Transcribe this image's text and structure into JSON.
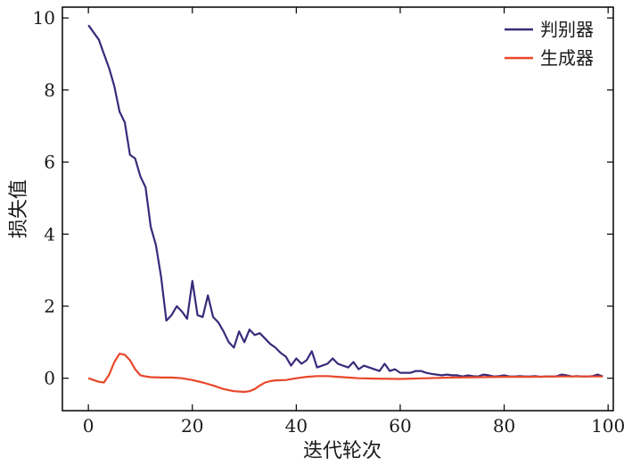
{
  "chart_data": {
    "type": "line",
    "xlabel": "迭代轮次",
    "ylabel": "损失值",
    "xlim": [
      -5,
      101
    ],
    "ylim": [
      -0.9,
      10.3
    ],
    "xticks": [
      0,
      20,
      40,
      60,
      80,
      100
    ],
    "yticks": [
      0,
      2,
      4,
      6,
      8,
      10
    ],
    "grid": false,
    "legend_position": "top-right",
    "series": [
      {
        "name": "判别器",
        "color": "#3b2a7a",
        "x": [
          0,
          1,
          2,
          3,
          4,
          5,
          6,
          7,
          8,
          9,
          10,
          11,
          12,
          13,
          14,
          15,
          16,
          17,
          18,
          19,
          20,
          21,
          22,
          23,
          24,
          25,
          26,
          27,
          28,
          29,
          30,
          31,
          32,
          33,
          34,
          35,
          36,
          37,
          38,
          39,
          40,
          41,
          42,
          43,
          44,
          45,
          46,
          47,
          48,
          49,
          50,
          51,
          52,
          53,
          54,
          55,
          56,
          57,
          58,
          59,
          60,
          61,
          62,
          63,
          64,
          65,
          66,
          67,
          68,
          69,
          70,
          71,
          72,
          73,
          74,
          75,
          76,
          77,
          78,
          79,
          80,
          81,
          82,
          83,
          84,
          85,
          86,
          87,
          88,
          89,
          90,
          91,
          92,
          93,
          94,
          95,
          96,
          97,
          98,
          99
        ],
        "y": [
          9.8,
          9.6,
          9.4,
          9.0,
          8.6,
          8.1,
          7.4,
          7.1,
          6.2,
          6.1,
          5.6,
          5.3,
          4.2,
          3.7,
          2.8,
          1.6,
          1.75,
          2.0,
          1.85,
          1.65,
          2.7,
          1.75,
          1.7,
          2.3,
          1.7,
          1.55,
          1.3,
          1.0,
          0.85,
          1.3,
          1.0,
          1.35,
          1.2,
          1.25,
          1.1,
          0.95,
          0.85,
          0.7,
          0.6,
          0.35,
          0.55,
          0.4,
          0.5,
          0.75,
          0.3,
          0.35,
          0.4,
          0.55,
          0.4,
          0.35,
          0.3,
          0.45,
          0.25,
          0.35,
          0.3,
          0.25,
          0.2,
          0.4,
          0.2,
          0.25,
          0.15,
          0.15,
          0.15,
          0.2,
          0.2,
          0.15,
          0.12,
          0.1,
          0.08,
          0.1,
          0.08,
          0.08,
          0.05,
          0.08,
          0.06,
          0.05,
          0.1,
          0.08,
          0.05,
          0.06,
          0.08,
          0.05,
          0.05,
          0.06,
          0.05,
          0.05,
          0.06,
          0.04,
          0.05,
          0.05,
          0.05,
          0.1,
          0.08,
          0.05,
          0.06,
          0.05,
          0.05,
          0.06,
          0.1,
          0.05
        ]
      },
      {
        "name": "生成器",
        "color": "#e8472a",
        "x": [
          0,
          1,
          2,
          3,
          4,
          5,
          6,
          7,
          8,
          9,
          10,
          11,
          12,
          14,
          16,
          18,
          20,
          22,
          24,
          26,
          28,
          30,
          31,
          32,
          33,
          34,
          35,
          36,
          38,
          40,
          42,
          44,
          46,
          48,
          50,
          52,
          55,
          60,
          65,
          70,
          75,
          80,
          85,
          90,
          95,
          99
        ],
        "y": [
          0.0,
          -0.05,
          -0.1,
          -0.12,
          0.1,
          0.45,
          0.68,
          0.65,
          0.5,
          0.25,
          0.08,
          0.05,
          0.03,
          0.02,
          0.02,
          0.0,
          -0.05,
          -0.12,
          -0.2,
          -0.3,
          -0.36,
          -0.38,
          -0.36,
          -0.3,
          -0.2,
          -0.12,
          -0.08,
          -0.06,
          -0.05,
          0.0,
          0.04,
          0.06,
          0.06,
          0.04,
          0.02,
          0.0,
          -0.01,
          -0.02,
          0.0,
          0.02,
          0.03,
          0.04,
          0.04,
          0.05,
          0.05,
          0.05
        ]
      }
    ]
  }
}
